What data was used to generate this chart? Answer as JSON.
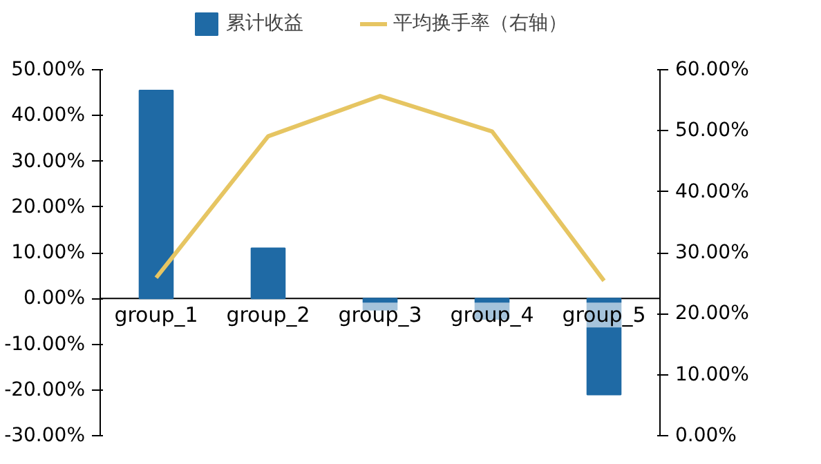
{
  "chart_data": {
    "type": "bar",
    "categories": [
      "group_1",
      "group_2",
      "group_3",
      "group_4",
      "group_5"
    ],
    "series": [
      {
        "name": "累计收益",
        "color": "#1f6aa5",
        "values": [
          45.5,
          11,
          -2.5,
          -4.5,
          -21
        ]
      },
      {
        "name": "平均换手率（右轴）",
        "color": "#e6c562",
        "type": "line",
        "axis": "y2",
        "values": [
          25.9,
          49.1,
          55.7,
          49.9,
          25.4
        ]
      }
    ],
    "ylim": [
      -30,
      50
    ],
    "yticks": [
      {
        "value": -30,
        "label": "-30.00%"
      },
      {
        "value": -20,
        "label": "-20.00%"
      },
      {
        "value": -10,
        "label": "-10.00%"
      },
      {
        "value": 0,
        "label": "0.00%"
      },
      {
        "value": 10,
        "label": "10.00%"
      },
      {
        "value": 20,
        "label": "20.00%"
      },
      {
        "value": 30,
        "label": "30.00%"
      },
      {
        "value": 40,
        "label": "40.00%"
      },
      {
        "value": 50,
        "label": "50.00%"
      }
    ],
    "y2lim": [
      0,
      60
    ],
    "y2ticks": [
      {
        "value": 0,
        "label": "0.00%"
      },
      {
        "value": 10,
        "label": "10.00%"
      },
      {
        "value": 20,
        "label": "20.00%"
      },
      {
        "value": 30,
        "label": "30.00%"
      },
      {
        "value": 40,
        "label": "40.00%"
      },
      {
        "value": 50,
        "label": "50.00%"
      },
      {
        "value": 60,
        "label": "60.00%"
      }
    ],
    "grid": false,
    "legend": "top",
    "marker": "none",
    "line_style": "solid"
  }
}
